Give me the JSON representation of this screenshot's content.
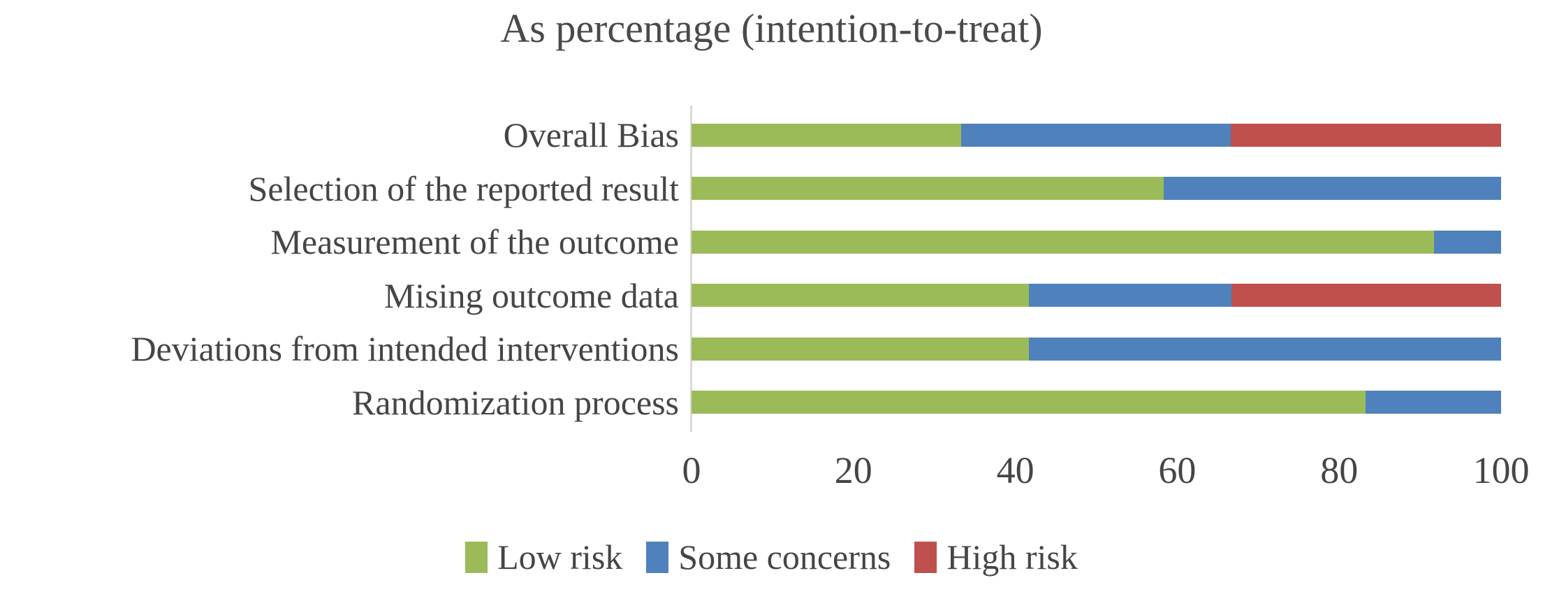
{
  "title": "As percentage (intention-to-treat)",
  "chart_data": {
    "type": "bar",
    "orientation": "horizontal",
    "stacked": true,
    "unit": "percent",
    "categories": [
      "Overall Bias",
      "Selection of the reported result",
      "Measurement of the outcome",
      "Mising outcome data",
      "Deviations from intended interventions",
      "Randomization process"
    ],
    "categories_order": "top-to-bottom",
    "series": [
      {
        "name": "Low risk",
        "color": "#9BBB59",
        "values": [
          33.3,
          58.3,
          91.7,
          41.7,
          41.7,
          83.3
        ]
      },
      {
        "name": "Some concerns",
        "color": "#4F81BD",
        "values": [
          33.3,
          41.7,
          8.3,
          25.0,
          58.3,
          16.7
        ]
      },
      {
        "name": "High risk",
        "color": "#C0504D",
        "values": [
          33.3,
          0.0,
          0.0,
          33.3,
          0.0,
          0.0
        ]
      }
    ],
    "x_axis": {
      "min": 0,
      "max": 100,
      "ticks": [
        0,
        20,
        40,
        60,
        80,
        100
      ]
    },
    "legend_position": "bottom",
    "gridlines": false
  },
  "style": {
    "text_color": "#454545",
    "axis_line_color": "#d9d9d9",
    "background": "#ffffff"
  }
}
